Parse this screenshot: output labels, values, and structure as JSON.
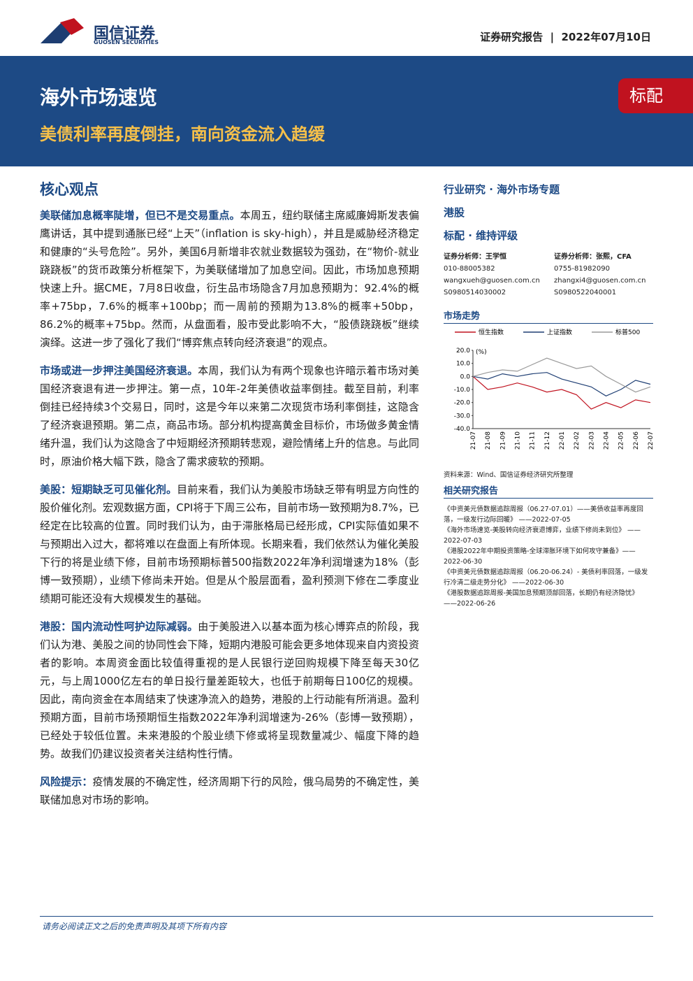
{
  "header": {
    "logo_cn": "国信证券",
    "logo_en": "GUOSEN SECURITIES",
    "report_type": "证券研究报告",
    "date": "2022年07月10日"
  },
  "banner": {
    "title": "海外市场速览",
    "subtitle": "美债利率再度倒挂，南向资金流入趋缓",
    "rating": "标配"
  },
  "main": {
    "heading": "核心观点",
    "paragraphs": [
      {
        "lead": "美联储加息概率陡增，但已不是交易重点。",
        "text": "本周五，纽约联储主席威廉姆斯发表偏鹰讲话，其中提到通胀已经“上天”（inflation is sky-high），并且是威胁经济稳定和健康的“头号危险”。另外，美国6月新增非农就业数据较为强劲，在“物价-就业跷跷板”的货币政策分析框架下，为美联储增加了加息空间。因此，市场加息预期快速上升。据CME，7月8日收盘，衍生品市场隐含7月加息预期为：92.4%的概率+75bp，7.6%的概率+100bp；而一周前的预期为13.8%的概率+50bp，86.2%的概率+75bp。然而，从盘面看，股市受此影响不大，“股债跷跷板”继续演绎。这进一步了强化了我们“博弈焦点转向经济衰退”的观点。"
      },
      {
        "lead": "市场或进一步押注美国经济衰退。",
        "text": "本周，我们认为有两个现象也许暗示着市场对美国经济衰退有进一步押注。第一点，10年-2年美债收益率倒挂。截至目前，利率倒挂已经持续3个交易日，同时，这是今年以来第二次现货市场利率倒挂，这隐含了经济衰退预期。第二点，商品市场。部分机构提高黄金目标价，市场做多黄金情绪升温，我们认为这隐含了中短期经济预期转悲观，避险情绪上升的信息。与此同时，原油价格大幅下跌，隐含了需求疲软的预期。"
      },
      {
        "lead": "美股：短期缺乏可见催化剂。",
        "text": "目前来看，我们认为美股市场缺乏带有明显方向性的股价催化剂。宏观数据方面，CPI将于下周三公布，目前市场一致预期为8.7%，已经定在比较高的位置。同时我们认为，由于滞胀格局已经形成，CPI实际值如果不与预期出入过大，都将难以在盘面上有所体现。长期来看，我们依然认为催化美股下行的将是业绩下修，目前市场预期标普500指数2022年净利润增速为18%（彭博一致预期），业绩下修尚未开始。但是从个股层面看，盈利预测下修在二季度业绩期可能还没有大规模发生的基础。"
      },
      {
        "lead": "港股：国内流动性呵护边际减弱。",
        "text": "由于美股进入以基本面为核心博弈点的阶段，我们认为港、美股之间的协同性会下降，短期内港股可能会更多地体现来自内资投资者的影响。本周资金面比较值得重视的是人民银行逆回购规模下降至每天30亿元，与上周1000亿左右的单日投行量差距较大，也低于前期每日100亿的规模。因此，南向资金在本周结束了快速净流入的趋势，港股的上行动能有所消退。盈利预期方面，目前市场预期恒生指数2022年净利润增速为-26%（彭博一致预期），已经处于较低位置。未来港股的个股业绩下修或将呈现数量减少、幅度下降的趋势。故我们仍建议投资者关注结构性行情。"
      },
      {
        "lead": "风险提示：",
        "text": "疫情发展的不确定性，经济周期下行的风险，俄乌局势的不确定性，美联储加息对市场的影响。"
      }
    ]
  },
  "sidebar": {
    "category": "行业研究 · 海外市场专题",
    "sector": "港股",
    "rating": "标配 · 维持评级",
    "analysts": [
      {
        "role": "证券分析师：王学恒",
        "phone": "010-88005382",
        "email": "wangxueh@guosen.com.cn",
        "cert": "S0980514030002"
      },
      {
        "role": "证券分析师：张熙，CFA",
        "phone": "0755-81982090",
        "email": "zhangxi4@guosen.com.cn",
        "cert": "S0980522040001"
      }
    ],
    "chart_heading": "市场走势",
    "source": "资料来源：Wind、国信证券经济研究所整理",
    "related_heading": "相关研究报告",
    "related": [
      "《中资美元债数据追踪周报（06.27-07.01）——美债收益率再度回落，一级发行边际回暖》 ——2022-07-05",
      "《海外市场速览-美股转向经济衰退博弈，业绩下修尚未到位》 ——2022-07-03",
      "《港股2022年中期投资策略-全球滞胀环境下如何攻守兼备》——2022-06-30",
      "《中资美元债数据追踪周报（06.20-06.24）- 美债利率回落，一级发行冷清二级走势分化》 ——2022-06-30",
      "《港股数据追踪周报-美国加息预期顶部回落，长期仍有经济隐忧》 ——2022-06-26"
    ]
  },
  "chart_data": {
    "type": "line",
    "y_unit": "(%)",
    "categories": [
      "21-07",
      "21-08",
      "21-09",
      "21-10",
      "21-11",
      "21-12",
      "22-01",
      "22-02",
      "22-03",
      "22-04",
      "22-05",
      "22-06",
      "22-07"
    ],
    "series": [
      {
        "name": "恒生指数",
        "color": "#c0121f",
        "values": [
          0,
          -10,
          -8,
          -5,
          -8,
          -12,
          -10,
          -14,
          -25,
          -20,
          -24,
          -18,
          -20
        ]
      },
      {
        "name": "上证指数",
        "color": "#1f3f74",
        "values": [
          0,
          -2,
          2,
          0,
          2,
          3,
          -2,
          -5,
          -8,
          -15,
          -10,
          -3,
          -6
        ]
      },
      {
        "name": "标普500",
        "color": "#9a9a9a",
        "values": [
          0,
          3,
          5,
          4,
          9,
          14,
          10,
          6,
          8,
          0,
          -6,
          -12,
          -8
        ]
      }
    ],
    "ylim": [
      -40,
      20
    ],
    "yticks": [
      {
        "value": 20,
        "label": "20.0"
      },
      {
        "value": 10,
        "label": "10.0"
      },
      {
        "value": 0,
        "label": "0.0"
      },
      {
        "value": -10,
        "label": "-10.0"
      },
      {
        "value": -20,
        "label": "-20.0"
      },
      {
        "value": -30,
        "label": "-30.0"
      },
      {
        "value": -40,
        "label": "-40.0"
      }
    ]
  },
  "footer": {
    "disclaimer": "请务必阅读正文之后的免责声明及其项下所有内容"
  }
}
